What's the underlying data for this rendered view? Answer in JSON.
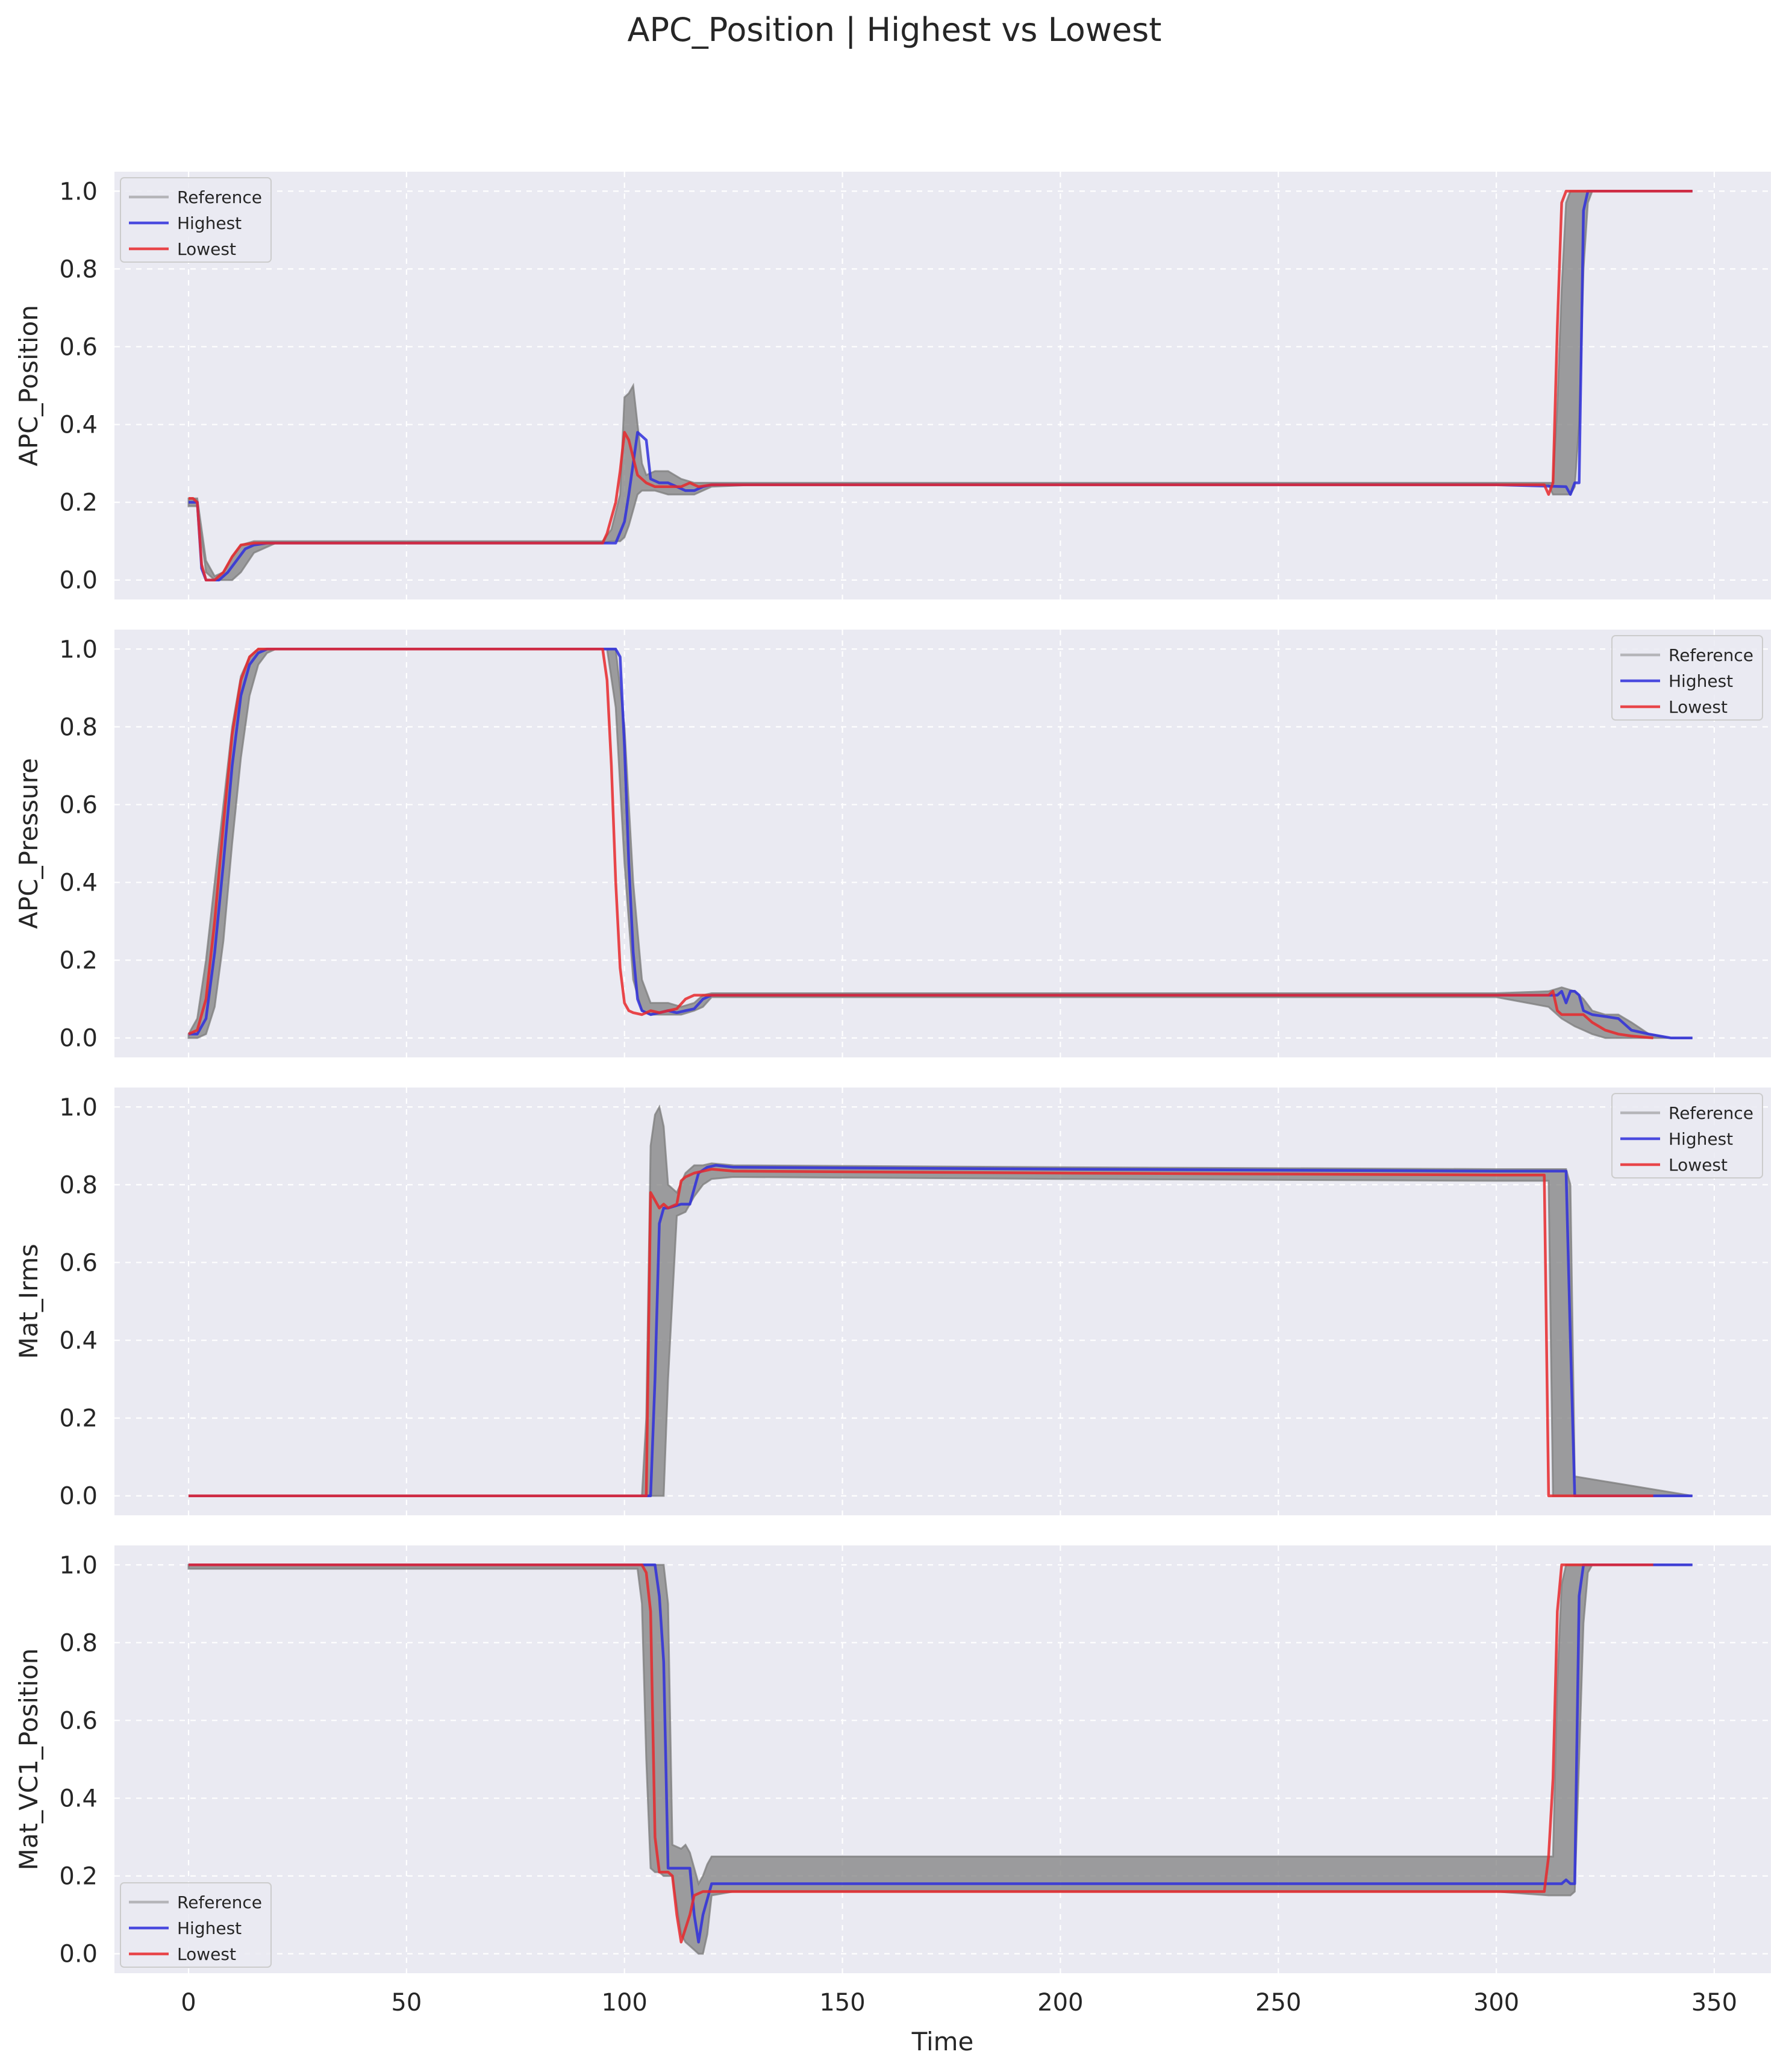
{
  "figure": {
    "title": "APC_Position | Highest vs Lowest",
    "xlabel": "Time"
  },
  "colors": {
    "background": "#eaeaf2",
    "grid": "#ffffff",
    "reference": "#808080",
    "highest": "#2f2fdc",
    "lowest": "#e8282c"
  },
  "legend_labels": [
    "Reference",
    "Highest",
    "Lowest"
  ],
  "chart_data": [
    {
      "type": "line",
      "ylabel": "APC_Position",
      "xlim": [
        -17,
        363
      ],
      "ylim": [
        -0.05,
        1.05
      ],
      "xticks": [
        0,
        50,
        100,
        150,
        200,
        250,
        300,
        350
      ],
      "yticks": [
        0.0,
        0.2,
        0.4,
        0.6,
        0.8,
        1.0
      ],
      "grid": true,
      "legend": "upper left",
      "reference_band": {
        "x": [
          0,
          2,
          4,
          6,
          8,
          10,
          12,
          15,
          20,
          60,
          95,
          97,
          99,
          100,
          101,
          102,
          103,
          104,
          105,
          107,
          110,
          113,
          116,
          120,
          130,
          200,
          300,
          312,
          313,
          314,
          315,
          316,
          317,
          318,
          319,
          320,
          321,
          322,
          345
        ],
        "upper": [
          0.21,
          0.21,
          0.05,
          0.01,
          0.02,
          0.06,
          0.09,
          0.1,
          0.1,
          0.1,
          0.1,
          0.13,
          0.22,
          0.47,
          0.48,
          0.5,
          0.4,
          0.3,
          0.27,
          0.28,
          0.28,
          0.26,
          0.25,
          0.25,
          0.25,
          0.25,
          0.25,
          0.25,
          0.25,
          0.45,
          0.75,
          0.97,
          1.0,
          1.0,
          1.0,
          1.0,
          1.0,
          1.0,
          1.0
        ],
        "lower": [
          0.19,
          0.19,
          0.02,
          0.0,
          0.0,
          0.0,
          0.02,
          0.07,
          0.095,
          0.095,
          0.095,
          0.1,
          0.1,
          0.11,
          0.14,
          0.18,
          0.22,
          0.23,
          0.23,
          0.23,
          0.22,
          0.22,
          0.22,
          0.24,
          0.245,
          0.245,
          0.245,
          0.245,
          0.22,
          0.22,
          0.22,
          0.22,
          0.22,
          0.24,
          0.4,
          0.8,
          0.97,
          1.0,
          1.0
        ]
      },
      "series": [
        {
          "name": "Highest",
          "color": "#2f2fdc",
          "x": [
            0,
            1,
            2,
            3,
            4,
            5,
            7,
            9,
            11,
            13,
            15,
            18,
            22,
            60,
            98,
            100,
            101,
            102,
            103,
            104,
            105,
            106,
            108,
            110,
            112,
            114,
            116,
            118,
            120,
            125,
            200,
            300,
            316,
            317,
            318,
            319,
            320,
            321,
            322,
            345
          ],
          "y": [
            0.2,
            0.2,
            0.2,
            0.03,
            0.0,
            0.0,
            0.0,
            0.02,
            0.05,
            0.08,
            0.09,
            0.095,
            0.095,
            0.095,
            0.095,
            0.15,
            0.22,
            0.3,
            0.38,
            0.37,
            0.36,
            0.26,
            0.25,
            0.25,
            0.24,
            0.23,
            0.23,
            0.24,
            0.245,
            0.245,
            0.245,
            0.245,
            0.24,
            0.22,
            0.25,
            0.25,
            0.95,
            1.0,
            1.0,
            1.0
          ]
        },
        {
          "name": "Lowest",
          "color": "#e8282c",
          "x": [
            0,
            1,
            2,
            3,
            4,
            6,
            8,
            10,
            12,
            15,
            20,
            60,
            95,
            96,
            98,
            99,
            100,
            101,
            103,
            105,
            107,
            110,
            113,
            115,
            117,
            120,
            200,
            300,
            311,
            312,
            313,
            314,
            315,
            316,
            318,
            320,
            345
          ],
          "y": [
            0.21,
            0.21,
            0.2,
            0.04,
            0.0,
            0.0,
            0.02,
            0.06,
            0.09,
            0.095,
            0.095,
            0.095,
            0.095,
            0.12,
            0.2,
            0.28,
            0.38,
            0.36,
            0.27,
            0.25,
            0.24,
            0.24,
            0.24,
            0.25,
            0.24,
            0.245,
            0.245,
            0.245,
            0.245,
            0.22,
            0.25,
            0.65,
            0.97,
            1.0,
            1.0,
            1.0,
            1.0
          ]
        }
      ]
    },
    {
      "type": "line",
      "ylabel": "APC_Pressure",
      "xlim": [
        -17,
        363
      ],
      "ylim": [
        -0.05,
        1.05
      ],
      "xticks": [
        0,
        50,
        100,
        150,
        200,
        250,
        300,
        350
      ],
      "yticks": [
        0.0,
        0.2,
        0.4,
        0.6,
        0.8,
        1.0
      ],
      "grid": true,
      "legend": "upper right",
      "reference_band": {
        "x": [
          0,
          2,
          4,
          6,
          8,
          10,
          12,
          14,
          16,
          18,
          20,
          60,
          96,
          98,
          100,
          102,
          104,
          106,
          108,
          110,
          113,
          116,
          118,
          120,
          125,
          200,
          300,
          312,
          315,
          318,
          320,
          322,
          325,
          328,
          331,
          335,
          340,
          345
        ],
        "upper": [
          0.01,
          0.05,
          0.2,
          0.4,
          0.6,
          0.8,
          0.93,
          0.98,
          1.0,
          1.0,
          1.0,
          1.0,
          1.0,
          1.0,
          0.8,
          0.4,
          0.15,
          0.09,
          0.09,
          0.09,
          0.08,
          0.09,
          0.11,
          0.115,
          0.115,
          0.115,
          0.115,
          0.12,
          0.13,
          0.12,
          0.1,
          0.07,
          0.06,
          0.06,
          0.04,
          0.01,
          0.0,
          0.0
        ],
        "lower": [
          0.0,
          0.0,
          0.01,
          0.08,
          0.25,
          0.5,
          0.72,
          0.88,
          0.96,
          0.99,
          1.0,
          1.0,
          1.0,
          0.85,
          0.45,
          0.15,
          0.07,
          0.06,
          0.06,
          0.06,
          0.06,
          0.07,
          0.08,
          0.105,
          0.105,
          0.105,
          0.105,
          0.08,
          0.05,
          0.03,
          0.02,
          0.01,
          0.0,
          0.0,
          0.0,
          0.0,
          0.0,
          0.0
        ]
      },
      "series": [
        {
          "name": "Highest",
          "color": "#2f2fdc",
          "x": [
            0,
            2,
            4,
            6,
            8,
            10,
            12,
            14,
            16,
            18,
            20,
            60,
            97,
            98,
            99,
            100,
            101,
            102,
            103,
            104,
            106,
            108,
            110,
            112,
            114,
            116,
            118,
            120,
            125,
            200,
            300,
            314,
            315,
            316,
            317,
            318,
            319,
            320,
            322,
            325,
            328,
            331,
            335,
            340,
            345
          ],
          "y": [
            0.01,
            0.01,
            0.05,
            0.22,
            0.45,
            0.7,
            0.88,
            0.96,
            0.99,
            1.0,
            1.0,
            1.0,
            1.0,
            1.0,
            0.98,
            0.75,
            0.45,
            0.22,
            0.1,
            0.07,
            0.06,
            0.065,
            0.07,
            0.065,
            0.07,
            0.075,
            0.1,
            0.11,
            0.11,
            0.11,
            0.11,
            0.11,
            0.12,
            0.09,
            0.12,
            0.12,
            0.11,
            0.07,
            0.06,
            0.055,
            0.05,
            0.02,
            0.01,
            0.0,
            0.0
          ]
        },
        {
          "name": "Lowest",
          "color": "#e8282c",
          "x": [
            0,
            2,
            4,
            6,
            8,
            10,
            12,
            14,
            16,
            18,
            20,
            60,
            95,
            96,
            97,
            98,
            99,
            100,
            101,
            102,
            104,
            106,
            108,
            110,
            112,
            114,
            116,
            118,
            120,
            200,
            300,
            312,
            313,
            314,
            315,
            317,
            320,
            322,
            325,
            328,
            331,
            336
          ],
          "y": [
            0.01,
            0.02,
            0.1,
            0.3,
            0.55,
            0.78,
            0.92,
            0.98,
            1.0,
            1.0,
            1.0,
            1.0,
            1.0,
            0.92,
            0.7,
            0.4,
            0.18,
            0.09,
            0.07,
            0.065,
            0.06,
            0.07,
            0.065,
            0.07,
            0.075,
            0.1,
            0.11,
            0.11,
            0.11,
            0.11,
            0.11,
            0.11,
            0.12,
            0.07,
            0.06,
            0.06,
            0.06,
            0.04,
            0.02,
            0.01,
            0.005,
            0.0
          ]
        }
      ]
    },
    {
      "type": "line",
      "ylabel": "Mat_Irms",
      "xlim": [
        -17,
        363
      ],
      "ylim": [
        -0.05,
        1.05
      ],
      "xticks": [
        0,
        50,
        100,
        150,
        200,
        250,
        300,
        350
      ],
      "yticks": [
        0.0,
        0.2,
        0.4,
        0.6,
        0.8,
        1.0
      ],
      "grid": true,
      "legend": "upper right",
      "reference_band": {
        "x": [
          0,
          104,
          105,
          106,
          107,
          108,
          109,
          110,
          112,
          114,
          116,
          118,
          120,
          125,
          200,
          300,
          312,
          313,
          314,
          315,
          316,
          317,
          318,
          345
        ],
        "upper": [
          0.0,
          0.0,
          0.2,
          0.9,
          0.98,
          1.0,
          0.95,
          0.8,
          0.78,
          0.83,
          0.85,
          0.85,
          0.855,
          0.85,
          0.845,
          0.84,
          0.84,
          0.84,
          0.84,
          0.84,
          0.84,
          0.8,
          0.05,
          0.0
        ],
        "lower": [
          0.0,
          0.0,
          0.0,
          0.0,
          0.0,
          0.0,
          0.0,
          0.3,
          0.72,
          0.73,
          0.77,
          0.8,
          0.815,
          0.82,
          0.815,
          0.81,
          0.81,
          0.0,
          0.0,
          0.0,
          0.0,
          0.0,
          0.0,
          0.0
        ]
      },
      "series": [
        {
          "name": "Highest",
          "color": "#2f2fdc",
          "x": [
            0,
            60,
            106,
            107,
            108,
            109,
            110,
            113,
            115,
            116,
            117,
            119,
            121,
            125,
            200,
            300,
            310,
            316,
            317,
            318,
            330,
            345
          ],
          "y": [
            0.0,
            0.0,
            0.0,
            0.3,
            0.7,
            0.74,
            0.74,
            0.75,
            0.75,
            0.79,
            0.83,
            0.845,
            0.85,
            0.845,
            0.84,
            0.835,
            0.835,
            0.835,
            0.4,
            0.0,
            0.0,
            0.0
          ]
        },
        {
          "name": "Lowest",
          "color": "#e8282c",
          "x": [
            0,
            60,
            104,
            105,
            106,
            107,
            108,
            109,
            110,
            112,
            113,
            114,
            116,
            118,
            120,
            125,
            200,
            300,
            311,
            312,
            313,
            320,
            336
          ],
          "y": [
            0.0,
            0.0,
            0.0,
            0.0,
            0.78,
            0.76,
            0.74,
            0.75,
            0.74,
            0.75,
            0.81,
            0.82,
            0.83,
            0.835,
            0.84,
            0.835,
            0.83,
            0.825,
            0.825,
            0.0,
            0.0,
            0.0,
            0.0
          ]
        }
      ]
    },
    {
      "type": "line",
      "ylabel": "Mat_VC1_Position",
      "xlim": [
        -17,
        363
      ],
      "ylim": [
        -0.05,
        1.05
      ],
      "xticks": [
        0,
        50,
        100,
        150,
        200,
        250,
        300,
        350
      ],
      "yticks": [
        0.0,
        0.2,
        0.4,
        0.6,
        0.8,
        1.0
      ],
      "grid": true,
      "legend": "lower left",
      "reference_band": {
        "x": [
          0,
          60,
          103,
          104,
          105,
          106,
          107,
          108,
          109,
          110,
          111,
          113,
          114,
          115,
          116,
          117,
          118,
          119,
          120,
          125,
          200,
          300,
          312,
          313,
          314,
          315,
          316,
          317,
          318,
          319,
          320,
          321,
          322,
          345
        ],
        "upper": [
          1.0,
          1.0,
          1.0,
          1.0,
          1.0,
          1.0,
          1.0,
          1.0,
          1.0,
          0.9,
          0.28,
          0.27,
          0.28,
          0.26,
          0.22,
          0.18,
          0.2,
          0.23,
          0.25,
          0.25,
          0.25,
          0.25,
          0.25,
          0.25,
          0.7,
          0.95,
          1.0,
          1.0,
          1.0,
          1.0,
          1.0,
          1.0,
          1.0,
          1.0
        ],
        "lower": [
          0.99,
          0.99,
          0.99,
          0.9,
          0.5,
          0.22,
          0.21,
          0.21,
          0.2,
          0.2,
          0.2,
          0.05,
          0.03,
          0.02,
          0.01,
          0.0,
          0.0,
          0.05,
          0.15,
          0.16,
          0.16,
          0.16,
          0.15,
          0.15,
          0.15,
          0.15,
          0.15,
          0.15,
          0.16,
          0.5,
          0.85,
          0.98,
          1.0,
          1.0
        ]
      },
      "series": [
        {
          "name": "Highest",
          "color": "#2f2fdc",
          "x": [
            0,
            30,
            60,
            90,
            103,
            105,
            106,
            107,
            108,
            109,
            110,
            113,
            114,
            115,
            116,
            117,
            118,
            120,
            122,
            125,
            140,
            170,
            200,
            250,
            280,
            300,
            310,
            314,
            315,
            316,
            317,
            318,
            319,
            320,
            322,
            330,
            345
          ],
          "y": [
            1.0,
            1.0,
            1.0,
            1.0,
            1.0,
            1.0,
            1.0,
            1.0,
            0.92,
            0.75,
            0.22,
            0.22,
            0.22,
            0.22,
            0.1,
            0.03,
            0.1,
            0.18,
            0.18,
            0.18,
            0.18,
            0.18,
            0.18,
            0.18,
            0.18,
            0.18,
            0.18,
            0.18,
            0.18,
            0.19,
            0.18,
            0.18,
            0.92,
            1.0,
            1.0,
            1.0,
            1.0
          ]
        },
        {
          "name": "Lowest",
          "color": "#e8282c",
          "x": [
            0,
            30,
            60,
            90,
            104,
            105,
            106,
            107,
            108,
            110,
            111,
            112,
            113,
            115,
            116,
            118,
            120,
            125,
            150,
            200,
            250,
            300,
            310,
            311,
            312,
            313,
            314,
            315,
            316,
            320,
            336
          ],
          "y": [
            1.0,
            1.0,
            1.0,
            1.0,
            1.0,
            0.98,
            0.88,
            0.3,
            0.21,
            0.21,
            0.2,
            0.1,
            0.03,
            0.1,
            0.15,
            0.16,
            0.16,
            0.16,
            0.16,
            0.16,
            0.16,
            0.16,
            0.16,
            0.16,
            0.25,
            0.45,
            0.88,
            1.0,
            1.0,
            1.0,
            1.0
          ]
        }
      ]
    }
  ]
}
